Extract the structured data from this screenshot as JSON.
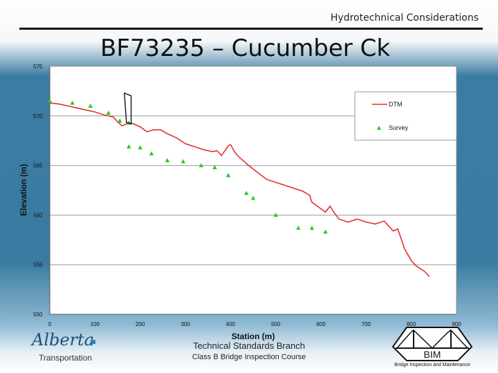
{
  "header": {
    "topic": "Hydrotechnical Considerations",
    "title": "BF73235 – Cucumber Ck"
  },
  "footer": {
    "branch": "Technical Standards Branch",
    "course": "Class B Bridge Inspection Course",
    "logo_text": "Alberta",
    "logo_sub": "Transportation",
    "bim_label": "BIM",
    "bim_sub": "Bridge Inspection and Maintenance"
  },
  "chart_data": {
    "type": "line",
    "xlabel": "Station (m)",
    "ylabel": "Elevation (m)",
    "xlim": [
      0,
      900
    ],
    "ylim": [
      550,
      575
    ],
    "x_ticks": [
      0,
      100,
      200,
      300,
      400,
      500,
      600,
      700,
      800,
      900
    ],
    "y_ticks": [
      550,
      555,
      560,
      565,
      570,
      575
    ],
    "grid": "horizontal",
    "legend_position": "top-right",
    "colors": {
      "dtm": "#e03030",
      "survey": "#22cc22",
      "plot_bg": "#ffffff"
    },
    "series": [
      {
        "name": "DTM",
        "style": "line",
        "x": [
          0,
          20,
          40,
          60,
          80,
          100,
          120,
          140,
          150,
          160,
          175,
          185,
          200,
          215,
          230,
          245,
          260,
          280,
          300,
          320,
          340,
          360,
          370,
          380,
          395,
          400,
          410,
          420,
          440,
          460,
          480,
          500,
          520,
          540,
          560,
          575,
          580,
          595,
          610,
          620,
          630,
          640,
          660,
          680,
          700,
          720,
          740,
          760,
          770,
          785,
          800,
          810,
          830,
          840
        ],
        "values": [
          571.3,
          571.2,
          571.0,
          570.8,
          570.6,
          570.4,
          570.1,
          569.9,
          569.4,
          569.0,
          569.3,
          569.2,
          568.9,
          568.4,
          568.6,
          568.6,
          568.2,
          567.8,
          567.2,
          566.9,
          566.6,
          566.4,
          566.5,
          566.0,
          567.0,
          567.1,
          566.3,
          565.8,
          565.0,
          564.3,
          563.6,
          563.3,
          563.0,
          562.7,
          562.4,
          562.0,
          561.3,
          560.8,
          560.3,
          560.9,
          560.2,
          559.6,
          559.3,
          559.6,
          559.3,
          559.1,
          559.4,
          558.4,
          558.6,
          556.6,
          555.4,
          554.9,
          554.3,
          553.8
        ]
      },
      {
        "name": "Survey",
        "style": "markers",
        "x": [
          0,
          50,
          90,
          130,
          155,
          175,
          175,
          200,
          225,
          260,
          295,
          335,
          365,
          395,
          435,
          450,
          500,
          550,
          580,
          610
        ],
        "values": [
          571.5,
          571.3,
          571.0,
          570.3,
          569.5,
          569.3,
          566.9,
          566.8,
          566.2,
          565.5,
          565.4,
          565.0,
          564.8,
          564.0,
          562.2,
          561.7,
          560.0,
          558.7,
          558.7,
          558.3
        ]
      }
    ]
  }
}
